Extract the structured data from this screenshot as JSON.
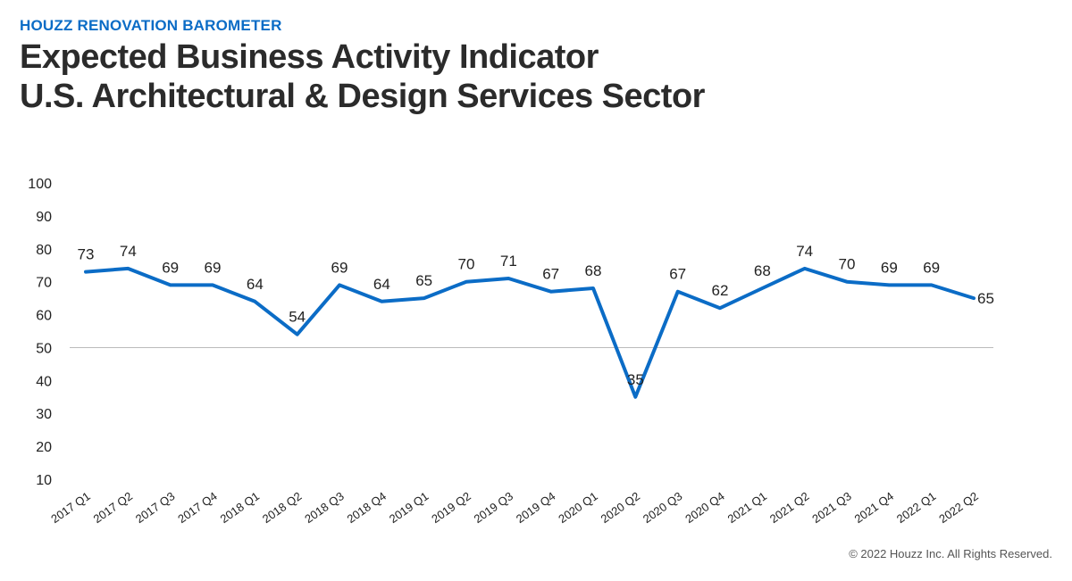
{
  "header": {
    "eyebrow": "HOUZZ RENOVATION BAROMETER",
    "title_line1": "Expected Business Activity Indicator",
    "title_line2": "U.S. Architectural & Design Services Sector"
  },
  "footer": {
    "copyright": "© 2022 Houzz Inc. All Rights Reserved."
  },
  "colors": {
    "line": "#0b6cc6",
    "baseline": "#bbbbbb",
    "text": "#222222"
  },
  "chart_data": {
    "type": "line",
    "title": "",
    "xlabel": "",
    "ylabel": "",
    "ylim": [
      10,
      100
    ],
    "yticks": [
      100,
      90,
      80,
      70,
      60,
      50,
      40,
      30,
      20,
      10
    ],
    "reference_line": 50,
    "grid": false,
    "legend": "none",
    "categories": [
      "2017 Q1",
      "2017 Q2",
      "2017 Q3",
      "2017 Q4",
      "2018 Q1",
      "2018 Q2",
      "2018 Q3",
      "2018 Q4",
      "2019 Q1",
      "2019 Q2",
      "2019 Q3",
      "2019 Q4",
      "2020 Q1",
      "2020 Q2",
      "2020 Q3",
      "2020 Q4",
      "2021 Q1",
      "2021 Q2",
      "2021 Q3",
      "2021 Q4",
      "2022 Q1",
      "2022 Q2"
    ],
    "values": [
      73,
      74,
      69,
      69,
      64,
      54,
      69,
      64,
      65,
      70,
      71,
      67,
      68,
      35,
      67,
      62,
      68,
      74,
      70,
      69,
      69,
      65
    ],
    "data_labels": [
      "73",
      "74",
      "69",
      "69",
      "64",
      "54",
      "69",
      "64",
      "65",
      "70",
      "71",
      "67",
      "68",
      "35",
      "67",
      "62",
      "68",
      "74",
      "70",
      "69",
      "69",
      "65"
    ],
    "data_label_positions": [
      "above",
      "above",
      "above",
      "above",
      "above",
      "above",
      "above",
      "above",
      "above",
      "above",
      "above",
      "above",
      "above",
      "above",
      "above",
      "above",
      "above",
      "above",
      "above",
      "above",
      "above",
      "right"
    ]
  }
}
